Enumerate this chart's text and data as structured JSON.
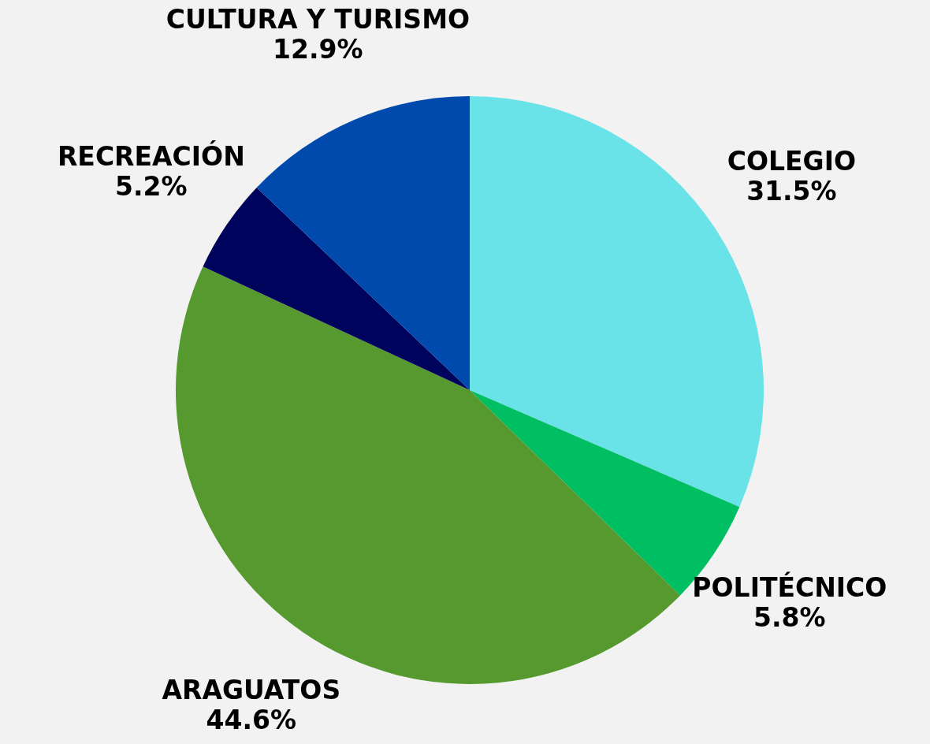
{
  "chart_data": {
    "type": "pie",
    "categories": [
      "COLEGIO",
      "POLITÉCNICO",
      "ARAGUATOS",
      "RECREACIÓN",
      "CULTURA Y TURISMO"
    ],
    "values": [
      31.5,
      5.8,
      44.6,
      5.2,
      12.9
    ],
    "value_labels": [
      "31.5%",
      "5.8%",
      "44.6%",
      "5.2%",
      "12.9%"
    ],
    "colors": [
      "#6ae3e8",
      "#00bf63",
      "#55992f",
      "#00035c",
      "#004aad"
    ],
    "legend": false
  }
}
